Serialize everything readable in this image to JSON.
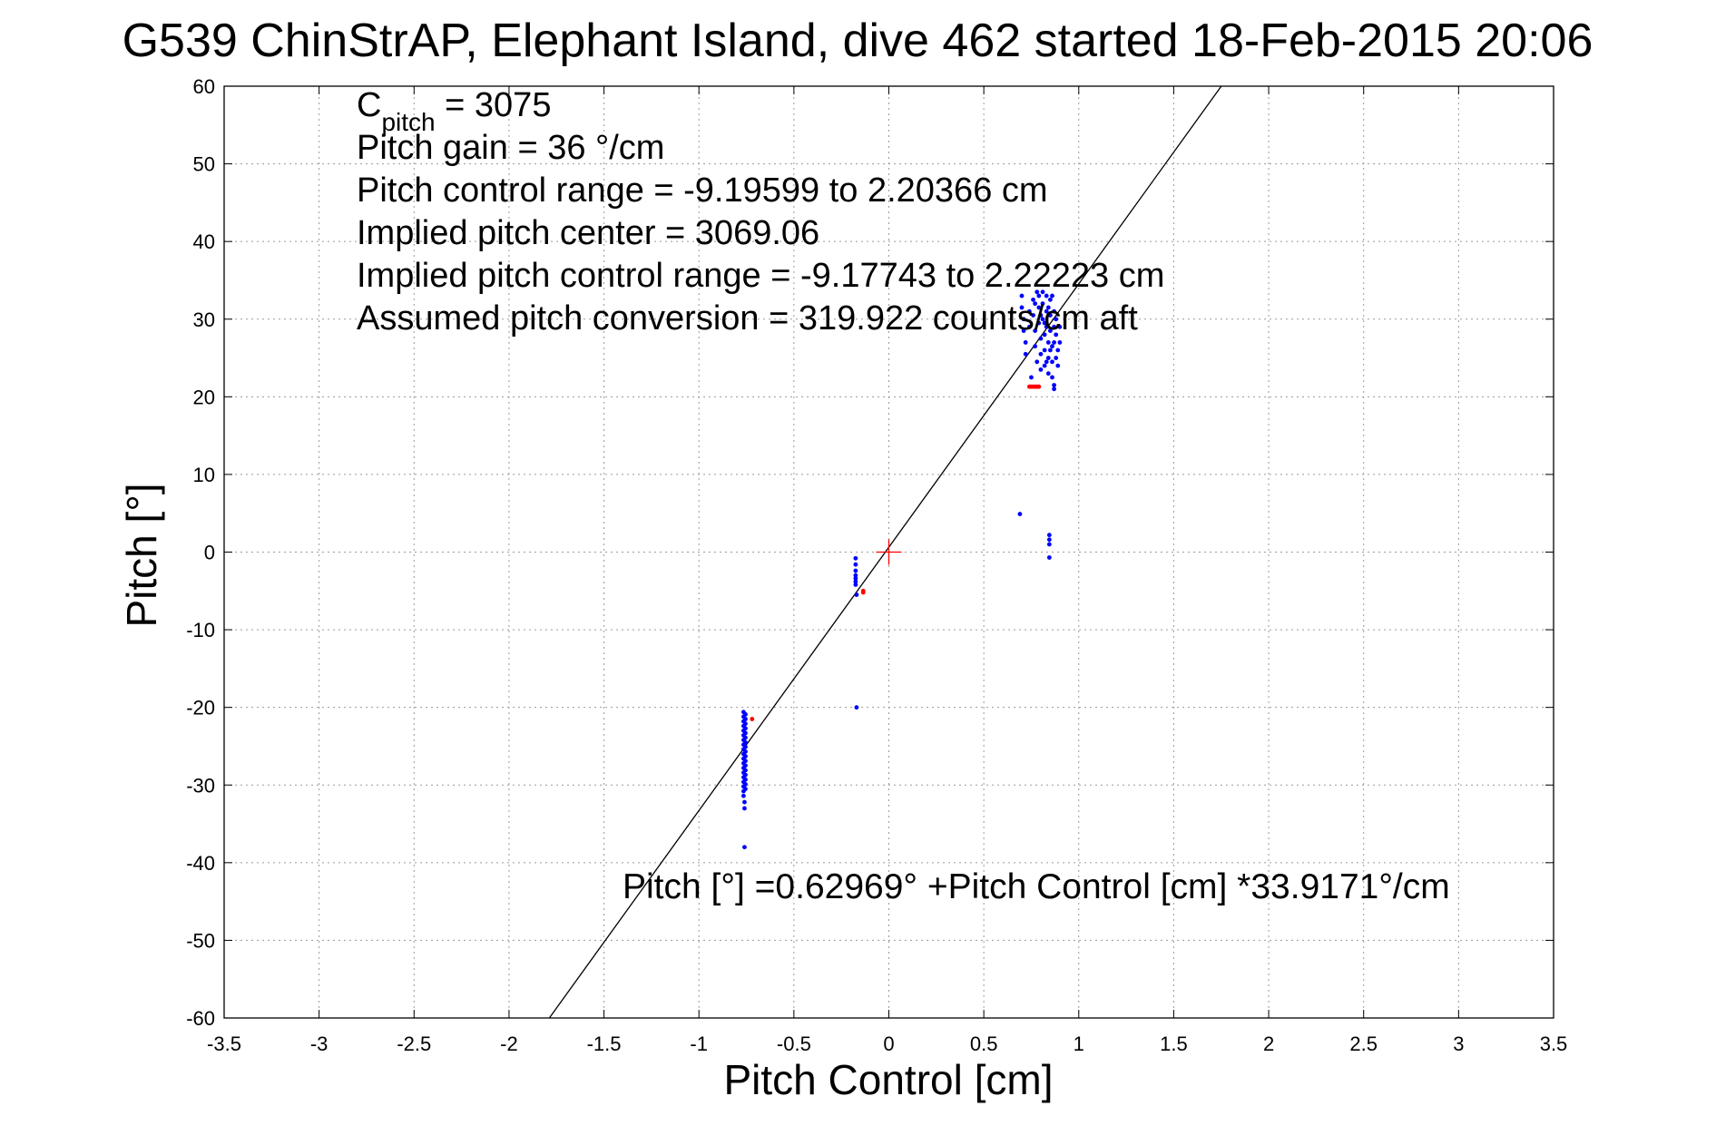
{
  "chart_data": {
    "type": "scatter",
    "title": "G539 ChinStrAP, Elephant Island, dive 462 started 18-Feb-2015 20:06",
    "xlabel": "Pitch Control [cm]",
    "ylabel": "Pitch [°]",
    "xlim": [
      -3.5,
      3.5
    ],
    "ylim": [
      -60,
      60
    ],
    "xticks": [
      "-3.5",
      "-3",
      "-2.5",
      "-2",
      "-1.5",
      "-1",
      "-0.5",
      "0",
      "0.5",
      "1",
      "1.5",
      "2",
      "2.5",
      "3",
      "3.5"
    ],
    "yticks": [
      "-60",
      "-50",
      "-40",
      "-30",
      "-20",
      "-10",
      "0",
      "10",
      "20",
      "30",
      "40",
      "50",
      "60"
    ],
    "grid": true,
    "annotations": [
      {
        "main": "C",
        "sub": "pitch",
        "rest": " = 3075"
      },
      {
        "text": "Pitch gain = 36 °/cm"
      },
      {
        "text": "Pitch control range = -9.19599 to 2.20366 cm"
      },
      {
        "text": "Implied pitch center = 3069.06"
      },
      {
        "text": "Implied pitch control range = -9.17743 to 2.22223 cm"
      },
      {
        "text": "Assumed pitch conversion = 319.922 counts/cm aft"
      }
    ],
    "fit_label": "Pitch [°] =0.62969° +Pitch Control [cm] *33.9171°/cm",
    "fit_line": {
      "intercept": 0.62969,
      "slope": 33.9171
    },
    "center_marker": {
      "x": 0,
      "y": 0
    },
    "series": [
      {
        "color": "#0000ff",
        "points": [
          [
            -0.765,
            -20.6
          ],
          [
            -0.765,
            -21.2
          ],
          [
            -0.765,
            -21.8
          ],
          [
            -0.765,
            -22.4
          ],
          [
            -0.765,
            -23.0
          ],
          [
            -0.765,
            -23.6
          ],
          [
            -0.765,
            -24.2
          ],
          [
            -0.765,
            -24.8
          ],
          [
            -0.765,
            -25.4
          ],
          [
            -0.765,
            -26.0
          ],
          [
            -0.765,
            -26.6
          ],
          [
            -0.765,
            -27.2
          ],
          [
            -0.765,
            -27.8
          ],
          [
            -0.765,
            -28.4
          ],
          [
            -0.765,
            -29.0
          ],
          [
            -0.765,
            -29.6
          ],
          [
            -0.765,
            -30.2
          ],
          [
            -0.765,
            -30.8
          ],
          [
            -0.765,
            -31.4
          ],
          [
            -0.755,
            -20.9
          ],
          [
            -0.755,
            -21.5
          ],
          [
            -0.755,
            -22.1
          ],
          [
            -0.755,
            -22.7
          ],
          [
            -0.755,
            -23.3
          ],
          [
            -0.755,
            -23.9
          ],
          [
            -0.755,
            -24.5
          ],
          [
            -0.755,
            -25.1
          ],
          [
            -0.755,
            -25.7
          ],
          [
            -0.755,
            -26.3
          ],
          [
            -0.755,
            -26.9
          ],
          [
            -0.755,
            -27.5
          ],
          [
            -0.755,
            -28.1
          ],
          [
            -0.755,
            -28.7
          ],
          [
            -0.755,
            -29.3
          ],
          [
            -0.755,
            -29.9
          ],
          [
            -0.755,
            -30.5
          ],
          [
            -0.76,
            -32.2
          ],
          [
            -0.76,
            -33.0
          ],
          [
            -0.76,
            -38.0
          ],
          [
            -0.175,
            -0.8
          ],
          [
            -0.175,
            -1.6
          ],
          [
            -0.175,
            -2.4
          ],
          [
            -0.175,
            -3.0
          ],
          [
            -0.175,
            -3.4
          ],
          [
            -0.175,
            -3.8
          ],
          [
            -0.175,
            -4.2
          ],
          [
            -0.17,
            -5.5
          ],
          [
            -0.17,
            -20.0
          ],
          [
            0.69,
            4.9
          ],
          [
            0.845,
            2.2
          ],
          [
            0.845,
            1.6
          ],
          [
            0.845,
            1.0
          ],
          [
            0.845,
            -0.7
          ],
          [
            0.7,
            33.0
          ],
          [
            0.7,
            31.5
          ],
          [
            0.71,
            30.0
          ],
          [
            0.71,
            28.5
          ],
          [
            0.72,
            27.0
          ],
          [
            0.72,
            25.5
          ],
          [
            0.74,
            31.0
          ],
          [
            0.74,
            29.0
          ],
          [
            0.75,
            22.5
          ],
          [
            0.76,
            32.5
          ],
          [
            0.76,
            30.5
          ],
          [
            0.77,
            28.5
          ],
          [
            0.77,
            26.5
          ],
          [
            0.78,
            24.5
          ],
          [
            0.78,
            33.5
          ],
          [
            0.79,
            31.5
          ],
          [
            0.79,
            29.5
          ],
          [
            0.8,
            27.5
          ],
          [
            0.8,
            25.5
          ],
          [
            0.8,
            23.5
          ],
          [
            0.81,
            32.0
          ],
          [
            0.81,
            30.0
          ],
          [
            0.82,
            28.0
          ],
          [
            0.82,
            26.0
          ],
          [
            0.82,
            24.0
          ],
          [
            0.83,
            33.0
          ],
          [
            0.83,
            31.0
          ],
          [
            0.83,
            29.0
          ],
          [
            0.84,
            27.0
          ],
          [
            0.84,
            25.0
          ],
          [
            0.84,
            23.0
          ],
          [
            0.85,
            32.5
          ],
          [
            0.85,
            30.5
          ],
          [
            0.85,
            28.5
          ],
          [
            0.86,
            26.5
          ],
          [
            0.86,
            24.5
          ],
          [
            0.86,
            22.5
          ],
          [
            0.87,
            31.0
          ],
          [
            0.87,
            29.0
          ],
          [
            0.87,
            27.0
          ],
          [
            0.88,
            25.0
          ],
          [
            0.88,
            30.0
          ],
          [
            0.88,
            28.0
          ],
          [
            0.89,
            26.0
          ],
          [
            0.89,
            24.0
          ],
          [
            0.9,
            29.0
          ],
          [
            0.9,
            27.0
          ],
          [
            0.87,
            21.5
          ],
          [
            0.87,
            21.0
          ],
          [
            0.77,
            32.0
          ],
          [
            0.79,
            33.0
          ],
          [
            0.81,
            33.5
          ],
          [
            0.84,
            31.5
          ],
          [
            0.86,
            33.0
          ],
          [
            0.8,
            30.5
          ],
          [
            0.82,
            29.5
          ],
          [
            0.85,
            26.0
          ],
          [
            0.83,
            24.5
          ]
        ]
      },
      {
        "color": "#ff0000",
        "points": [
          [
            0.74,
            21.3
          ],
          [
            0.75,
            21.3
          ],
          [
            0.76,
            21.3
          ],
          [
            0.77,
            21.3
          ],
          [
            0.78,
            21.3
          ],
          [
            0.79,
            21.3
          ],
          [
            -0.135,
            -5.0
          ],
          [
            -0.135,
            -5.2
          ],
          [
            -0.72,
            -21.5
          ]
        ]
      }
    ]
  }
}
